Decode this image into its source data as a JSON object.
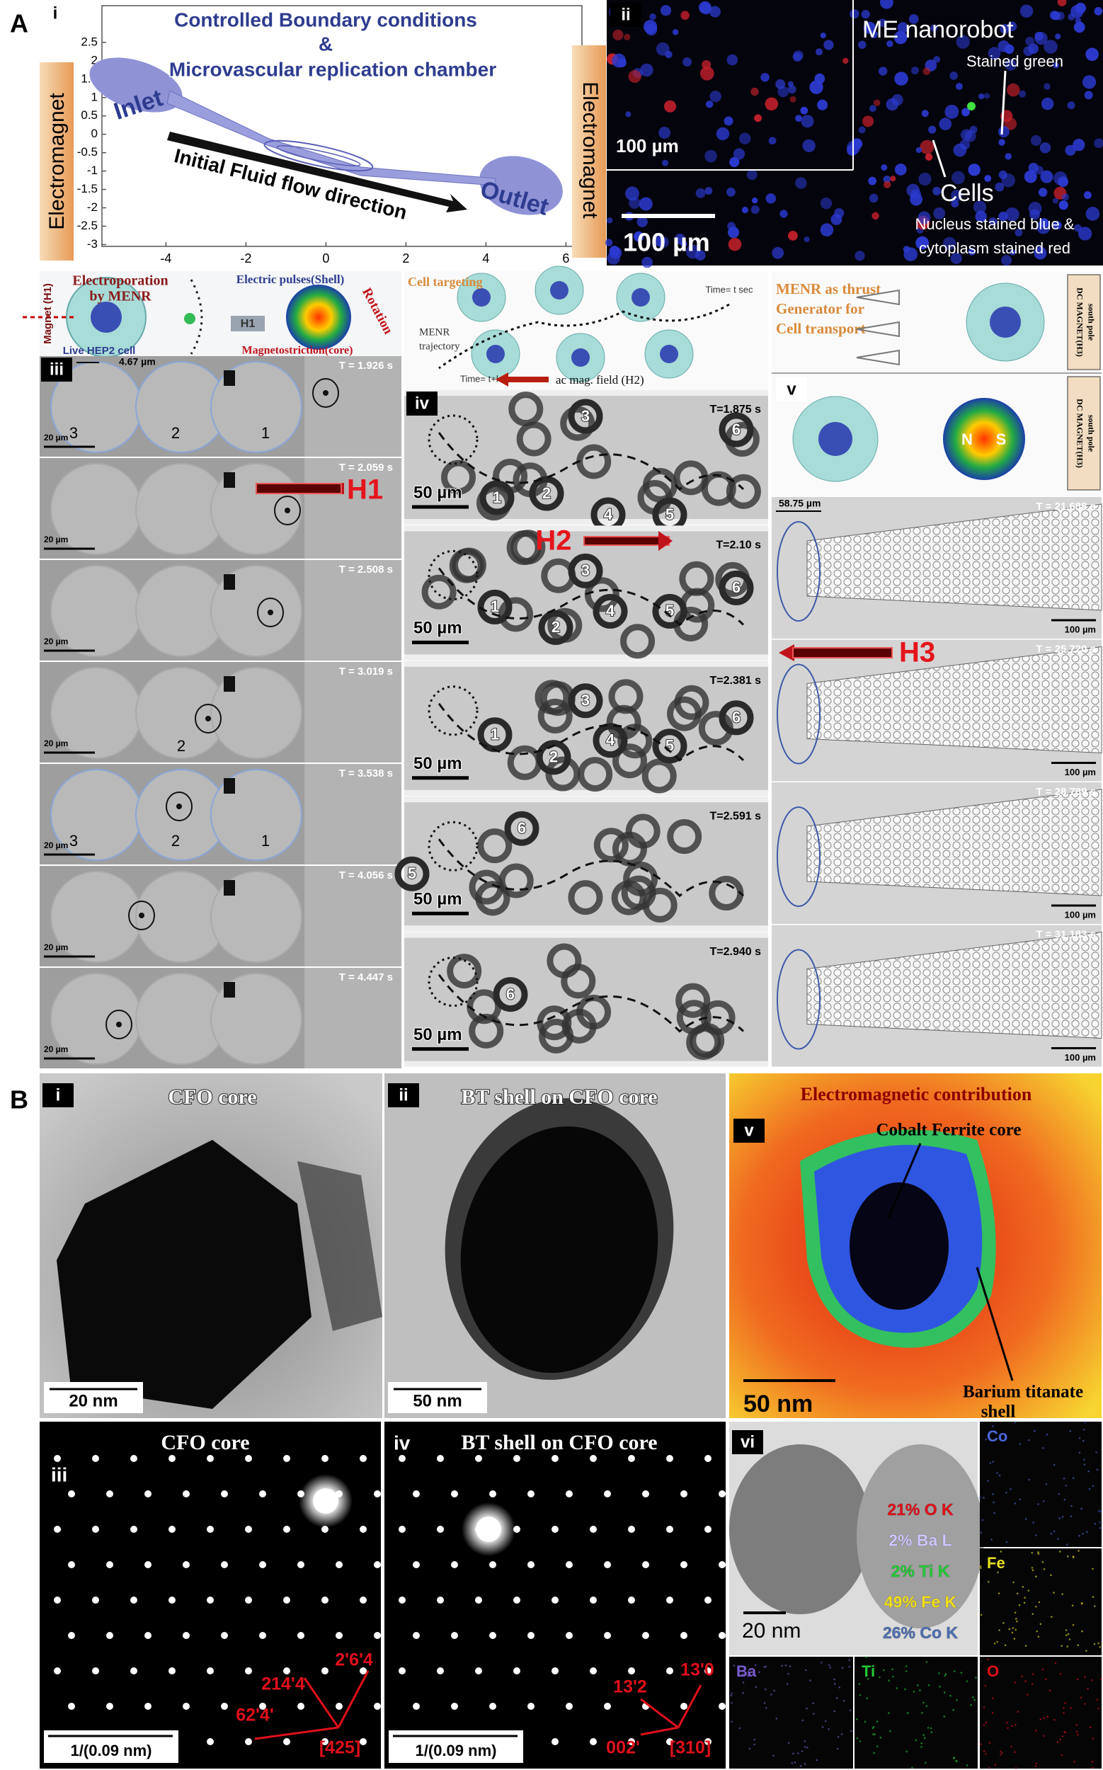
{
  "panel_a": {
    "label": "A",
    "i": {
      "label": "i",
      "title": [
        "Controlled Boundary conditions",
        "&",
        "Microvascular replication chamber"
      ],
      "inlet": "Inlet",
      "outlet": "Outlet",
      "flow": "Initial Fluid flow direction",
      "magnet_left": "Electromagnet",
      "magnet_right": "Electromagnet",
      "xlim": [
        -5.6,
        6.4
      ],
      "ylim": [
        -3.05,
        3.5
      ],
      "xticks": [
        -4,
        -2,
        0,
        2,
        4,
        6
      ],
      "yticks": [
        2.5,
        2,
        1.5,
        1,
        0.5,
        0,
        -0.5,
        -1,
        -1.5,
        -2,
        -2.5,
        -3
      ]
    },
    "ii": {
      "label": "ii",
      "title": "ME nanorobot",
      "stained_green": "Stained green",
      "cells": "Cells",
      "note": [
        "Nucleus stained blue &",
        "cytoplasm stained red"
      ],
      "inset_scale": "100 µm",
      "scale": "100 µm"
    },
    "iii": {
      "label": "iii",
      "magnet": "Magnet (H1)",
      "electroporation": [
        "Electroporation",
        "by MENR"
      ],
      "pulses": "Electric pulses(Shell)",
      "rotation": "Rotation",
      "field_small": "H1",
      "cell": "Live HEP2 cell",
      "magnetostriction": "Magnetostriction(core)",
      "gap": "4.67 µm",
      "field": "H1",
      "scale": "20 µm",
      "frames": [
        {
          "time": "T = 1.926 s",
          "cells": [
            "3",
            "2",
            "1"
          ]
        },
        {
          "time": "T = 2.059 s"
        },
        {
          "time": "T = 2.508 s"
        },
        {
          "time": "T = 3.019 s",
          "cells": [
            "2"
          ]
        },
        {
          "time": "T = 3.538 s",
          "cells": [
            "3",
            "2",
            "1"
          ]
        },
        {
          "time": "T = 4.056 s"
        },
        {
          "time": "T = 4.447 s"
        }
      ]
    },
    "iv": {
      "label": "iv",
      "targeting": "Cell targeting",
      "trajectory": [
        "MENR",
        "trajectory"
      ],
      "t0": "Time= t sec",
      "t1": "Time= t+k sec",
      "field_label": "ac mag. field (H2)",
      "field": "H2",
      "scale": "50 µm",
      "frames": [
        {
          "time": "T=1.875 s",
          "cells": [
            "1",
            "2",
            "3",
            "4",
            "5",
            "6"
          ]
        },
        {
          "time": "T=2.10 s",
          "cells": [
            "1",
            "2",
            "3",
            "4",
            "5",
            "6"
          ]
        },
        {
          "time": "T=2.381 s",
          "cells": [
            "1",
            "2",
            "3",
            "4",
            "5",
            "6"
          ]
        },
        {
          "time": "T=2.591 s",
          "cells": [
            "5",
            "6"
          ]
        },
        {
          "time": "T=2.940 s",
          "cells": [
            "6"
          ]
        }
      ]
    },
    "v": {
      "label": "v",
      "thrust": [
        "MENR as thrust",
        "Generator for",
        "Cell transport"
      ],
      "magnet": [
        "DC MAGNET(H3)",
        "south pole"
      ],
      "magnet_2": [
        "DC MAGNET(H3)",
        "south pole"
      ],
      "n": "N",
      "s": "S",
      "gap": "58.75 µm",
      "field": "H3",
      "scale": "100 µm",
      "frames": [
        {
          "time": "T = 21.688 s"
        },
        {
          "time": "T = 25.720 s"
        },
        {
          "time": "T = 28.789 s"
        },
        {
          "time": "T = 31.183 s"
        }
      ]
    }
  },
  "panel_b": {
    "label": "B",
    "i": {
      "label": "i",
      "title": "CFO core",
      "scale": "20 nm"
    },
    "ii": {
      "label": "ii",
      "title": "BT shell on CFO core",
      "scale": "50 nm"
    },
    "v": {
      "label": "v",
      "title": "Electromagnetic contribution",
      "core": "Cobalt Ferrite core",
      "shell": [
        "Barium titanate",
        "shell"
      ],
      "scale": "50 nm"
    },
    "iii": {
      "label": "iii",
      "title": "CFO core",
      "indices": [
        "2'6'4",
        "214'4",
        "62'4'",
        "[425]"
      ],
      "scale": "1/(0.09 nm)"
    },
    "iv": {
      "label": "iv",
      "title": "BT shell on CFO core",
      "indices": [
        "13'2",
        "13'0",
        "002'",
        "[310]"
      ],
      "scale": "1/(0.09 nm)"
    },
    "vi": {
      "label": "vi",
      "scale": "20 nm",
      "composition": [
        "21% O K",
        "2% Ba L",
        "2% Ti K",
        "49% Fe K",
        "26% Co K"
      ],
      "maps": [
        "Co",
        "Fe",
        "Ba",
        "Ti",
        "O"
      ]
    }
  }
}
